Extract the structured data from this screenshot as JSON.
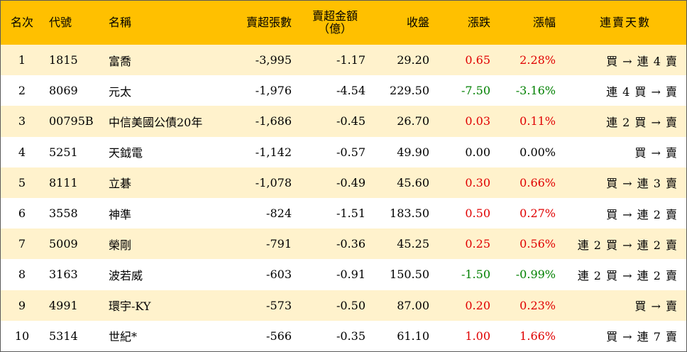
{
  "headers": {
    "rank": "名次",
    "code": "代號",
    "name": "名稱",
    "net_sell_shares": "賣超張數",
    "net_sell_amount_line1": "賣超金額",
    "net_sell_amount_line2": "（億）",
    "close": "收盤",
    "change": "漲跌",
    "change_pct": "漲幅",
    "consecutive_days": "連賣天數"
  },
  "colors": {
    "header_bg": "#ffc000",
    "odd_row_bg": "#fff2cc",
    "even_row_bg": "#ffffff",
    "up": "#e00000",
    "down": "#008000"
  },
  "rows": [
    {
      "rank": "1",
      "code": "1815",
      "name": "富喬",
      "net_sell_shares": "-3,995",
      "net_sell_amount": "-1.17",
      "close": "29.20",
      "change": "0.65",
      "change_pct": "2.28%",
      "trend": "up",
      "days": "買 → 連 4 賣"
    },
    {
      "rank": "2",
      "code": "8069",
      "name": "元太",
      "net_sell_shares": "-1,976",
      "net_sell_amount": "-4.54",
      "close": "229.50",
      "change": "-7.50",
      "change_pct": "-3.16%",
      "trend": "down",
      "days": "連 4 買 → 賣"
    },
    {
      "rank": "3",
      "code": "00795B",
      "name": "中信美國公債20年",
      "net_sell_shares": "-1,686",
      "net_sell_amount": "-0.45",
      "close": "26.70",
      "change": "0.03",
      "change_pct": "0.11%",
      "trend": "up",
      "days": "連 2 買 → 賣"
    },
    {
      "rank": "4",
      "code": "5251",
      "name": "天鉞電",
      "net_sell_shares": "-1,142",
      "net_sell_amount": "-0.57",
      "close": "49.90",
      "change": "0.00",
      "change_pct": "0.00%",
      "trend": "flat",
      "days": "買 → 賣"
    },
    {
      "rank": "5",
      "code": "8111",
      "name": "立碁",
      "net_sell_shares": "-1,078",
      "net_sell_amount": "-0.49",
      "close": "45.60",
      "change": "0.30",
      "change_pct": "0.66%",
      "trend": "up",
      "days": "買 → 連 3 賣"
    },
    {
      "rank": "6",
      "code": "3558",
      "name": "神準",
      "net_sell_shares": "-824",
      "net_sell_amount": "-1.51",
      "close": "183.50",
      "change": "0.50",
      "change_pct": "0.27%",
      "trend": "up",
      "days": "買 → 連 2 賣"
    },
    {
      "rank": "7",
      "code": "5009",
      "name": "榮剛",
      "net_sell_shares": "-791",
      "net_sell_amount": "-0.36",
      "close": "45.25",
      "change": "0.25",
      "change_pct": "0.56%",
      "trend": "up",
      "days": "連 2 買 → 連 2 賣"
    },
    {
      "rank": "8",
      "code": "3163",
      "name": "波若威",
      "net_sell_shares": "-603",
      "net_sell_amount": "-0.91",
      "close": "150.50",
      "change": "-1.50",
      "change_pct": "-0.99%",
      "trend": "down",
      "days": "連 2 買 → 連 2 賣"
    },
    {
      "rank": "9",
      "code": "4991",
      "name": "環宇-KY",
      "net_sell_shares": "-573",
      "net_sell_amount": "-0.50",
      "close": "87.00",
      "change": "0.20",
      "change_pct": "0.23%",
      "trend": "up",
      "days": "買 → 賣"
    },
    {
      "rank": "10",
      "code": "5314",
      "name": "世紀*",
      "net_sell_shares": "-566",
      "net_sell_amount": "-0.35",
      "close": "61.10",
      "change": "1.00",
      "change_pct": "1.66%",
      "trend": "up",
      "days": "買 → 連 7 賣"
    }
  ]
}
